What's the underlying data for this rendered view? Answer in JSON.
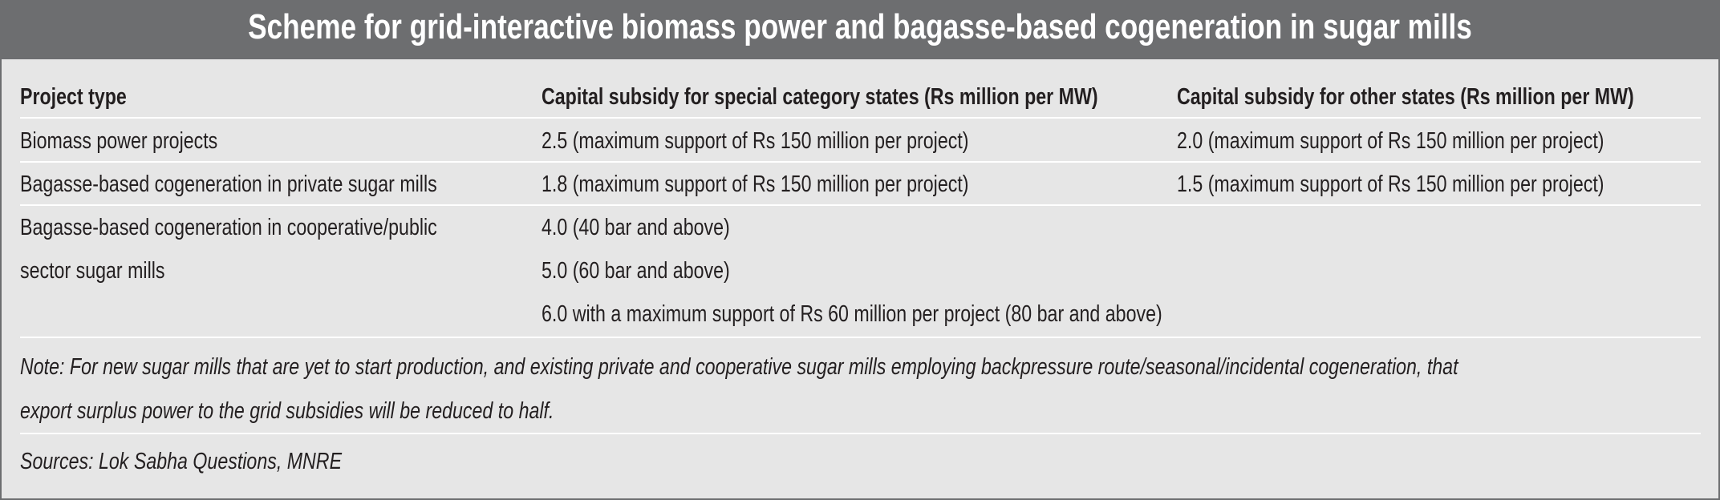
{
  "title": "Scheme for grid-interactive biomass power and bagasse-based cogeneration in sugar mills",
  "table": {
    "headers": [
      "Project type",
      "Capital subsidy for special category states (Rs million per MW)",
      "Capital subsidy for other states (Rs million per MW)"
    ],
    "rows": [
      {
        "type": [
          "Biomass power projects"
        ],
        "special": [
          "2.5 (maximum support of Rs 150 million per project)"
        ],
        "other": [
          "2.0 (maximum support of Rs 150 million per project)"
        ]
      },
      {
        "type": [
          "Bagasse-based cogeneration in private sugar mills"
        ],
        "special": [
          "1.8 (maximum support of Rs 150 million per project)"
        ],
        "other": [
          "1.5 (maximum support of Rs 150 million per project)"
        ]
      },
      {
        "type": [
          "Bagasse-based cogeneration in cooperative/public",
          "sector sugar mills"
        ],
        "special": [
          "4.0 (40 bar and above)",
          "5.0 (60 bar and above)",
          "6.0 with a maximum support of Rs 60 million per project (80 bar and above)"
        ],
        "other": []
      }
    ]
  },
  "note": [
    "Note: For new sugar mills that are yet to start production, and existing private and cooperative sugar mills employing backpressure route/seasonal/incidental cogeneration, that",
    "export surplus power to the grid subsidies will be reduced to half."
  ],
  "sources": "Sources: Lok Sabha Questions, MNRE",
  "colors": {
    "header_bg": "#6d6e70",
    "body_bg": "#e6e6e6",
    "text": "#231f20"
  }
}
